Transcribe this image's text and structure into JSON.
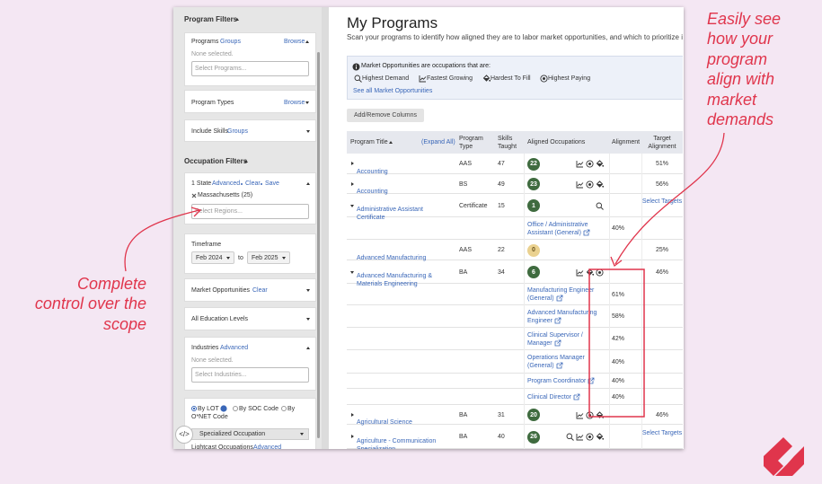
{
  "annotations": {
    "right": [
      "Easily see",
      "how your",
      "program",
      "align with",
      "market",
      "demands"
    ],
    "left": [
      "Complete",
      "control over the",
      "scope"
    ]
  },
  "sidebar": {
    "program_filters": "Program Filters",
    "programs": {
      "label": "Programs",
      "groups": "Groups",
      "browse": "Browse",
      "note": "None selected.",
      "placeholder": "Select Programs..."
    },
    "program_types": {
      "label": "Program Types",
      "browse": "Browse"
    },
    "include_skills": {
      "label": "Include Skills",
      "groups": "Groups"
    },
    "occupation_filters": "Occupation Filters",
    "state": {
      "label": "1 State",
      "advanced": "Advanced",
      "clear": "Clear",
      "save": "Save",
      "chip": "Massachusetts (25)",
      "placeholder": "Select Regions..."
    },
    "timeframe": {
      "label": "Timeframe",
      "from": "Feb 2024",
      "to_word": "to",
      "to": "Feb 2025"
    },
    "market": {
      "label": "Market Opportunities",
      "clear": "Clear"
    },
    "education": "All Education Levels",
    "industries": {
      "label": "Industries",
      "advanced": "Advanced",
      "note": "None selected.",
      "placeholder": "Select Industries..."
    },
    "occupation_mode": {
      "options": [
        "By LOT",
        "By SOC Code",
        "By O*NET Code"
      ],
      "select": "Specialized Occupation",
      "next_label": "Lightcast Occupations",
      "next_link": "Advanced"
    },
    "code_button": "</>"
  },
  "main": {
    "title": "My Programs",
    "subtitle": "Scan your programs to identify how aligned they are to labor market opportunities, and which to prioritize in",
    "market_box": {
      "intro": "Market Opportunities are occupations that are:",
      "items": [
        "Highest Demand",
        "Fastest Growing",
        "Hardest To Fill",
        "Highest Paying"
      ],
      "link": "See all Market Opportunities"
    },
    "button": "Add/Remove Columns",
    "table": {
      "headers": {
        "program_title": "Program Title",
        "expand": "(Expand All)",
        "program_type": "Program Type",
        "skills": "Skills Taught",
        "occupations": "Aligned Occupations",
        "alignment": "Alignment",
        "target": "Target Alignment"
      },
      "rows": [
        {
          "title": "Accounting",
          "type": "AAS",
          "skills": 47,
          "occupations": 22,
          "target": "51%"
        },
        {
          "title": "Accounting",
          "type": "BS",
          "skills": 49,
          "occupations": 23,
          "target": "56%"
        },
        {
          "title": "Administrative Assistant Certificate",
          "type": "Certificate",
          "skills": 15,
          "occupations": 1,
          "target": "Select Targets",
          "children": [
            {
              "name": "Office / Administrative Assistant (General)",
              "alignment": "40%"
            }
          ]
        },
        {
          "title": "Advanced Manufacturing",
          "type": "AAS",
          "skills": 22,
          "occupations": 0,
          "target": "25%"
        },
        {
          "title": "Advanced Manufacturing & Materials Engineering",
          "type": "BA",
          "skills": 34,
          "occupations": 6,
          "target": "46%",
          "children": [
            {
              "name": "Manufacturing Engineer (General)",
              "alignment": "61%"
            },
            {
              "name": "Advanced Manufacturing Engineer",
              "alignment": "58%"
            },
            {
              "name": "Clinical Supervisor / Manager",
              "alignment": "42%"
            },
            {
              "name": "Operations Manager (General)",
              "alignment": "40%"
            },
            {
              "name": "Program Coordinator",
              "alignment": "40%"
            },
            {
              "name": "Clinical Director",
              "alignment": "40%"
            }
          ]
        },
        {
          "title": "Agricultural Science",
          "type": "BA",
          "skills": 31,
          "occupations": 20,
          "target": "46%"
        },
        {
          "title": "Agriculture - Communication Specialization",
          "type": "BA",
          "skills": 40,
          "occupations": 26,
          "target": "Select Targets"
        }
      ]
    }
  }
}
